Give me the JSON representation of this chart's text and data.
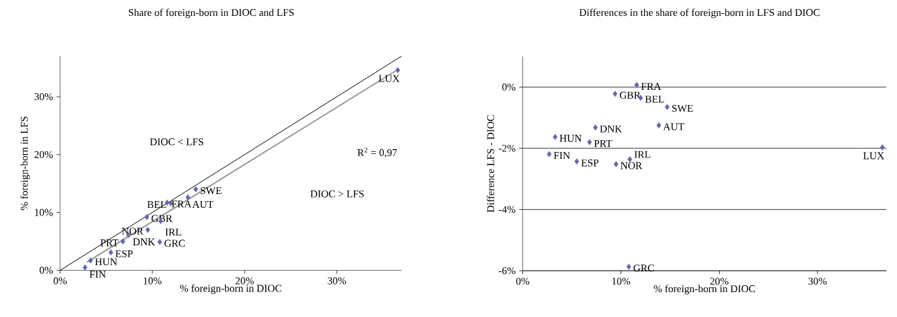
{
  "chart_data": [
    {
      "type": "scatter",
      "title": "Share of foreign-born in DIOC and LFS",
      "xlabel": "% foreign-born in DIOC",
      "ylabel": "% foreign-born in LFS",
      "xlim": [
        0,
        37
      ],
      "ylim": [
        0,
        37
      ],
      "xticks": [
        {
          "value": 0,
          "label": "0%"
        },
        {
          "value": 10,
          "label": "10%"
        },
        {
          "value": 20,
          "label": "20%"
        },
        {
          "value": 30,
          "label": "30%"
        }
      ],
      "yticks": [
        {
          "value": 0,
          "label": "0%"
        },
        {
          "value": 10,
          "label": "10%"
        },
        {
          "value": 20,
          "label": "20%"
        },
        {
          "value": 30,
          "label": "30%"
        }
      ],
      "series": [
        {
          "type": "line",
          "marker": "none",
          "color": "#000000",
          "x": [
            0,
            37
          ],
          "values": [
            0,
            37
          ]
        },
        {
          "type": "line",
          "marker": "none",
          "color": "#999999",
          "x": [
            2.9,
            36.5
          ],
          "values": [
            1.4,
            34.6
          ]
        },
        {
          "marker": "diamond",
          "color": "#6666aa",
          "x": [
            36.6,
            14.7,
            13.85,
            11.6,
            12.0,
            9.4,
            10.9,
            9.5,
            7.4,
            6.8,
            10.8,
            5.5,
            3.3,
            2.7
          ],
          "values": [
            34.6,
            14.0,
            12.6,
            11.7,
            11.6,
            9.2,
            8.5,
            7.0,
            6.1,
            5.0,
            4.9,
            3.1,
            1.7,
            0.5
          ]
        }
      ],
      "annotations": [
        {
          "text": "LUX",
          "x": 36.6,
          "y": 34.6
        },
        {
          "text": "SWE",
          "x": 14.7,
          "y": 14.0
        },
        {
          "text": "AUT",
          "x": 13.85,
          "y": 12.6
        },
        {
          "text": "FRA",
          "x": 11.6,
          "y": 11.7
        },
        {
          "text": "BEL",
          "x": 12.0,
          "y": 11.6
        },
        {
          "text": "GBR",
          "x": 9.4,
          "y": 9.2
        },
        {
          "text": "IRL",
          "x": 10.9,
          "y": 8.5
        },
        {
          "text": "NOR",
          "x": 9.5,
          "y": 7.0
        },
        {
          "text": "DNK",
          "x": 7.4,
          "y": 6.1
        },
        {
          "text": "PRT",
          "x": 6.8,
          "y": 5.0
        },
        {
          "text": "GRC",
          "x": 10.8,
          "y": 4.9
        },
        {
          "text": "ESP",
          "x": 5.5,
          "y": 3.1
        },
        {
          "text": "HUN",
          "x": 3.3,
          "y": 1.7
        },
        {
          "text": "FIN",
          "x": 2.7,
          "y": 0.5
        },
        "DIOC < LFS",
        "DIOC > LFS",
        "R$^{2}$ = 0,97"
      ]
    },
    {
      "type": "scatter",
      "title": "Differences in the share of foreign-born in LFS and DIOC",
      "xlabel": "% foreign-born in DIOC",
      "ylabel": "Difference LFS - DIOC",
      "xlim": [
        0,
        37
      ],
      "ylim": [
        -6,
        1
      ],
      "xticks": [
        {
          "value": 0,
          "label": "0%"
        },
        {
          "value": 10,
          "label": "10%"
        },
        {
          "value": 20,
          "label": "20%"
        },
        {
          "value": 30,
          "label": "30%"
        }
      ],
      "yticks": [
        {
          "value": -6,
          "label": "-6%"
        },
        {
          "value": -4,
          "label": "-4%"
        },
        {
          "value": -2,
          "label": "-2%"
        },
        {
          "value": 0,
          "label": "0%"
        }
      ],
      "grid": "y",
      "marker": "diamond",
      "series": [
        {
          "color": "#6666aa",
          "x": [
            11.6,
            9.4,
            12.0,
            14.7,
            13.85,
            7.4,
            3.3,
            6.8,
            2.7,
            5.5,
            9.5,
            10.9,
            10.8,
            36.6
          ],
          "values": [
            0.07,
            -0.22,
            -0.35,
            -0.65,
            -1.25,
            -1.32,
            -1.63,
            -1.8,
            -2.19,
            -2.43,
            -2.52,
            -2.36,
            -5.87,
            -1.97
          ]
        }
      ],
      "annotations": [
        {
          "text": "FRA",
          "x": 11.6,
          "y": 0.07
        },
        {
          "text": "GBR",
          "x": 9.4,
          "y": -0.22
        },
        {
          "text": "BEL",
          "x": 12.0,
          "y": -0.35
        },
        {
          "text": "SWE",
          "x": 14.7,
          "y": -0.65
        },
        {
          "text": "AUT",
          "x": 13.85,
          "y": -1.25
        },
        {
          "text": "DNK",
          "x": 7.4,
          "y": -1.32
        },
        {
          "text": "HUN",
          "x": 3.3,
          "y": -1.63
        },
        {
          "text": "PRT",
          "x": 6.8,
          "y": -1.8
        },
        {
          "text": "FIN",
          "x": 2.7,
          "y": -2.19
        },
        {
          "text": "ESP",
          "x": 5.5,
          "y": -2.43
        },
        {
          "text": "NOR",
          "x": 9.5,
          "y": -2.52
        },
        {
          "text": "IRL",
          "x": 10.9,
          "y": -2.36
        },
        {
          "text": "GRC",
          "x": 10.8,
          "y": -5.87
        },
        {
          "text": "LUX",
          "x": 36.6,
          "y": -1.97
        }
      ]
    }
  ]
}
